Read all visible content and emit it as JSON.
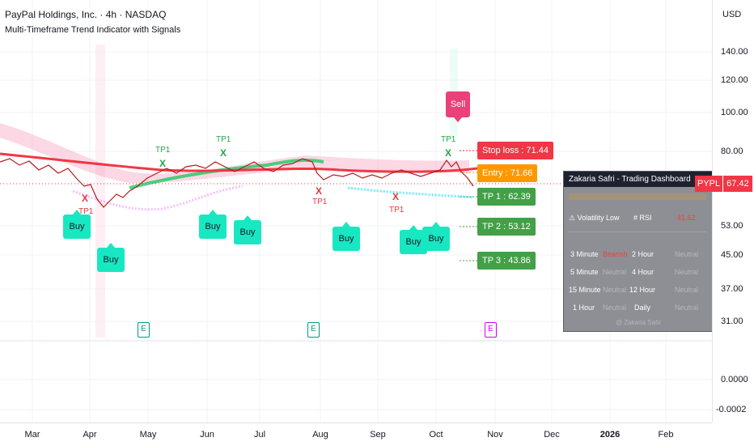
{
  "header": {
    "title": "PayPal Holdings, Inc. · 4h · NASDAQ",
    "subtitle": "Multi-Timeframe Trend Indicator with Signals",
    "currency": "USD"
  },
  "price_axis": [
    "140.00",
    "120.00",
    "100.00",
    "80.00",
    "53.00",
    "45.00",
    "37.00",
    "31.00",
    "0.0000",
    "-0.0002"
  ],
  "price_badge": {
    "symbol": "PYPL",
    "value": "67.42"
  },
  "time_axis": [
    "Mar",
    "Apr",
    "May",
    "Jun",
    "Jul",
    "Aug",
    "Sep",
    "Oct",
    "Nov",
    "Dec",
    "2026",
    "Feb"
  ],
  "signals": {
    "sell": "Sell",
    "buy": "Buy",
    "tp1": "TP1",
    "x": "X",
    "earnings": "E"
  },
  "levels": {
    "stop_loss": "Stop loss : 71.44",
    "entry": "Entry : 71.66",
    "tp1": "TP 1 : 62.39",
    "tp2": "TP 2 : 53.12",
    "tp3": "TP 3 : 43.86"
  },
  "dashboard": {
    "title": "Zakaria Safri - Trading Dashboard",
    "row_volatility": {
      "label": "⚠ Volatility",
      "value": "Low",
      "rsi_label": "# RSI",
      "rsi_value": "41.62"
    },
    "timeframes": [
      {
        "tf1": "3 Minute",
        "v1": "Bearish",
        "tf2": "2 Hour",
        "v2": "Neutral"
      },
      {
        "tf1": "5 Minute",
        "v1": "Neutral",
        "tf2": "4 Hour",
        "v2": "Neutral"
      },
      {
        "tf1": "15 Minute",
        "v1": "Neutral",
        "tf2": "12 Hour",
        "v2": "Neutral"
      },
      {
        "tf1": "1 Hour",
        "v1": "Neutral",
        "tf2": "Daily",
        "v2": "Neutral"
      }
    ],
    "footer": "@ Zakaria Safri"
  },
  "colors": {
    "bull": "#17e8c2",
    "sell": "#ec407a",
    "stop": "#f23645",
    "entry": "#ff9800",
    "tp": "#43a047"
  }
}
